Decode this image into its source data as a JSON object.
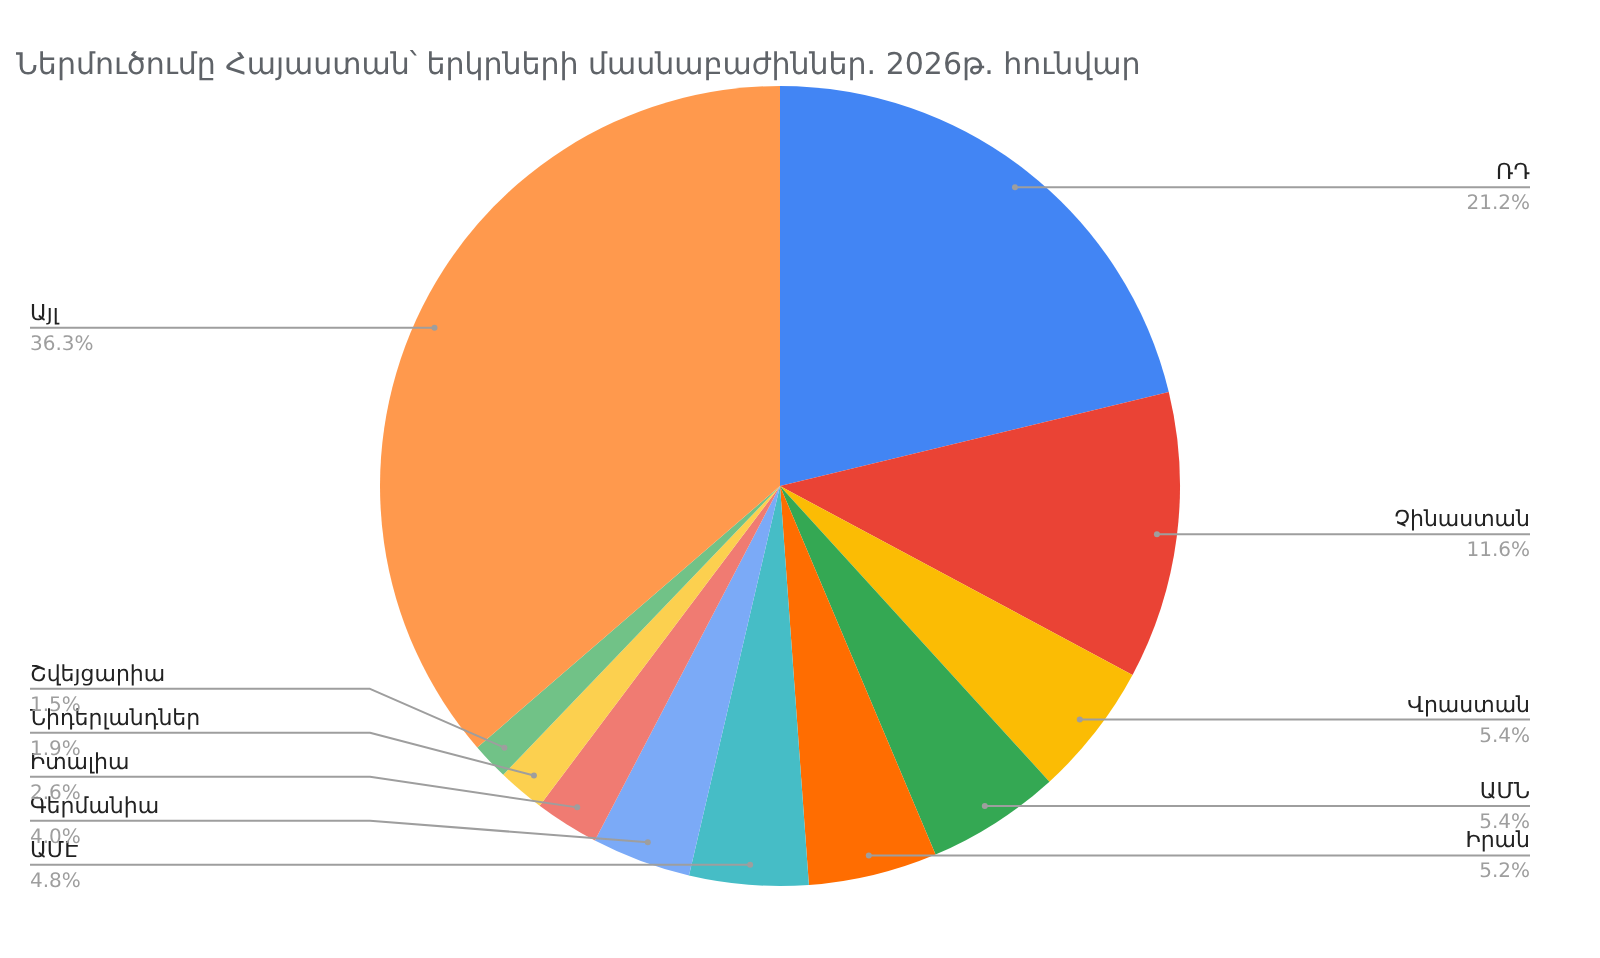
{
  "chart_data": {
    "type": "pie",
    "title": "Ներմուծումը Հայաստան՝ երկրների մասնաբաժիններ. 2026թ. հունվար",
    "categories": [
      "ՌԴ",
      "Չինաստան",
      "Վրաստան",
      "ԱՄՆ",
      "Իրան",
      "ԱՄԷ",
      "Գերմանիա",
      "Իտալիա",
      "Նիդերլանդներ",
      "Շվեյցարիա",
      "Այլ"
    ],
    "values": [
      21.2,
      11.6,
      5.4,
      5.4,
      5.2,
      4.8,
      4.0,
      2.6,
      1.9,
      1.5,
      36.3
    ],
    "colors": [
      "#4285f4",
      "#ea4335",
      "#fbbc04",
      "#34a853",
      "#ff6d01",
      "#46bdc6",
      "#7baaf7",
      "#f07b72",
      "#fcd04f",
      "#71c287",
      "#ff994d"
    ],
    "value_labels": [
      "21.2%",
      "11.6%",
      "5.4%",
      "5.4%",
      "5.2%",
      "4.8%",
      "4.0%",
      "2.6%",
      "1.9%",
      "1.5%",
      "36.3%"
    ]
  }
}
